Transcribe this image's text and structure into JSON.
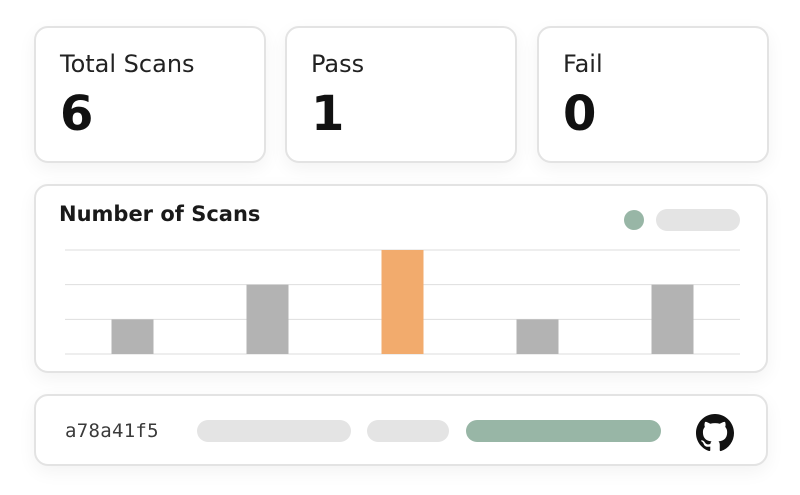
{
  "stats": [
    {
      "label": "Total Scans",
      "value": "6"
    },
    {
      "label": "Pass",
      "value": "1"
    },
    {
      "label": "Fail",
      "value": "0"
    }
  ],
  "chart": {
    "title": "Number of Scans",
    "legend_dot_color": "#98b6a6",
    "legend_placeholder_color": "#e4e4e4"
  },
  "chart_data": {
    "type": "bar",
    "title": "Number of Scans",
    "categories": [
      "",
      "",
      "",
      "",
      ""
    ],
    "values": [
      1,
      2,
      3,
      1,
      2
    ],
    "ylim": [
      0,
      3
    ],
    "grid": true,
    "colors": [
      "#b3b3b3",
      "#b3b3b3",
      "#f2ab6d",
      "#b3b3b3",
      "#b3b3b3"
    ],
    "highlight_index": 2
  },
  "commit": {
    "hash": "a78a41f5",
    "placeholder_color": "#e4e4e4",
    "status_color": "#98b6a6",
    "icon": "github-icon"
  }
}
